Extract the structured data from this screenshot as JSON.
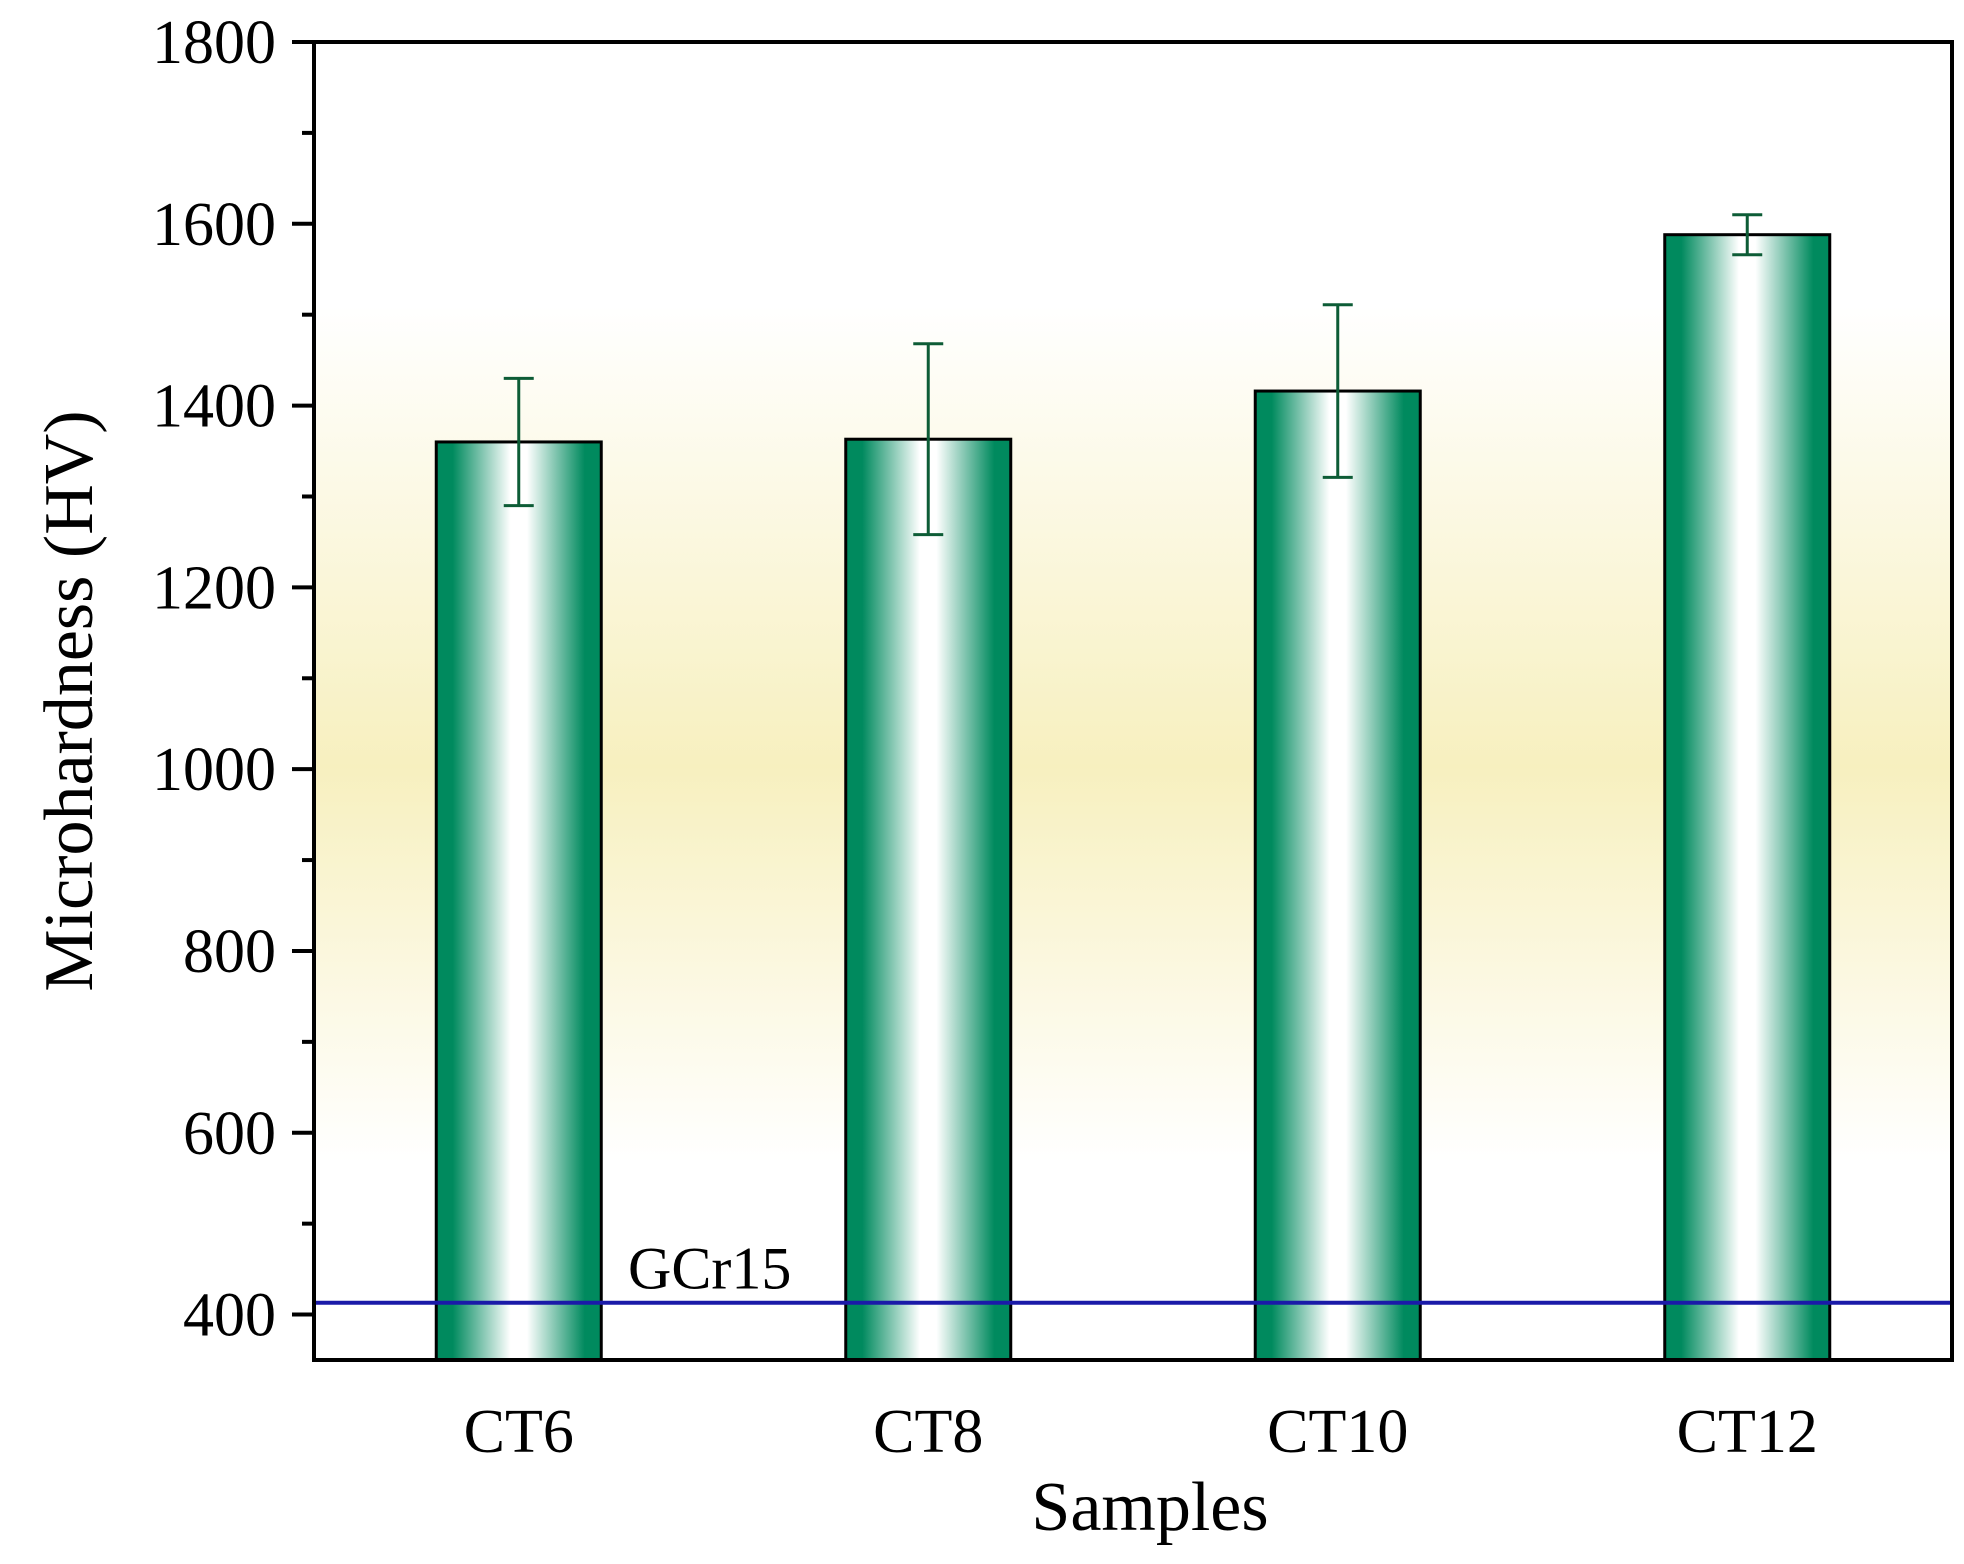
{
  "chart_data": {
    "type": "bar",
    "title": "",
    "xlabel": "Samples",
    "ylabel": "Microhardness (HV)",
    "categories": [
      "CT6",
      "CT8",
      "CT10",
      "CT12"
    ],
    "values": [
      1360,
      1363,
      1416,
      1588
    ],
    "errors": [
      70,
      105,
      95,
      22
    ],
    "ylim": [
      350,
      1800
    ],
    "yticks": [
      400,
      600,
      800,
      1000,
      1200,
      1400,
      1600,
      1800
    ],
    "grid": false,
    "reference_line": {
      "label": "GCr15",
      "value": 413
    },
    "colors": {
      "bar_dark": "#008a5e",
      "bar_light": "#ffffff",
      "bar_edge": "#000000",
      "error_bar": "#0d5c36",
      "reference_line": "#1a1aa8",
      "background_top": "#ffffff",
      "background_mid": "#f7f0bf"
    }
  }
}
